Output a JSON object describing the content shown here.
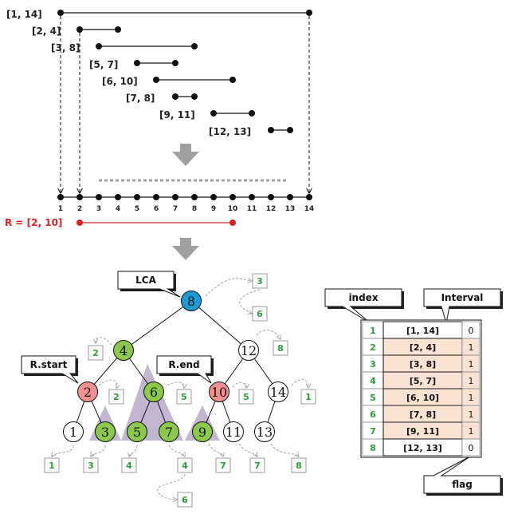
{
  "intervals": [
    {
      "label": "[1, 14]",
      "start": 1,
      "end": 14
    },
    {
      "label": "[2, 4]",
      "start": 2,
      "end": 4
    },
    {
      "label": "[3, 8]",
      "start": 3,
      "end": 8
    },
    {
      "label": "[5, 7]",
      "start": 5,
      "end": 7
    },
    {
      "label": "[6, 10]",
      "start": 6,
      "end": 10
    },
    {
      "label": "[7, 8]",
      "start": 7,
      "end": 8
    },
    {
      "label": "[9, 11]",
      "start": 9,
      "end": 11
    },
    {
      "label": "[12, 13]",
      "start": 12,
      "end": 13
    }
  ],
  "axis_ticks": [
    "1",
    "2",
    "3",
    "4",
    "5",
    "6",
    "7",
    "8",
    "9",
    "10",
    "11",
    "12",
    "13",
    "14"
  ],
  "query": {
    "label": "R = [2, 10]",
    "start": 2,
    "end": 10
  },
  "colors": {
    "interval": "#111111",
    "query": "#e02020",
    "lca": "#1e9bd7",
    "green": "#8cc84b",
    "pink": "#f09090",
    "arrow": "#a0a0a0",
    "shade": "#b8a9c9",
    "table_row": "#fbe3d3"
  },
  "tree_nodes": [
    {
      "id": "8",
      "label": "8",
      "color": "lca",
      "indices": [
        "3",
        "6"
      ]
    },
    {
      "id": "4",
      "label": "4",
      "color": "green",
      "indices": [
        "2"
      ]
    },
    {
      "id": "12",
      "label": "12",
      "color": "white",
      "indices": [
        "8"
      ]
    },
    {
      "id": "2",
      "label": "2",
      "color": "pink",
      "indices": [
        "2"
      ]
    },
    {
      "id": "6",
      "label": "6",
      "color": "green",
      "indices": [
        "5"
      ]
    },
    {
      "id": "10",
      "label": "10",
      "color": "pink",
      "indices": [
        "5"
      ]
    },
    {
      "id": "14",
      "label": "14",
      "color": "white",
      "indices": [
        "1"
      ]
    },
    {
      "id": "1",
      "label": "1",
      "color": "white",
      "indices": [
        "1"
      ]
    },
    {
      "id": "3",
      "label": "3",
      "color": "green",
      "indices": [
        "3"
      ]
    },
    {
      "id": "5",
      "label": "5",
      "color": "green",
      "indices": [
        "4"
      ]
    },
    {
      "id": "7",
      "label": "7",
      "color": "green",
      "indices": [
        "4",
        "6"
      ]
    },
    {
      "id": "9",
      "label": "9",
      "color": "green",
      "indices": [
        "7"
      ]
    },
    {
      "id": "11",
      "label": "11",
      "color": "white",
      "indices": [
        "7"
      ]
    },
    {
      "id": "13",
      "label": "13",
      "color": "white",
      "indices": [
        "8"
      ]
    }
  ],
  "callouts": {
    "lca": "LCA",
    "rstart": "R.start",
    "rend": "R.end"
  },
  "table": {
    "header_index": "index",
    "header_interval": "Interval",
    "footer_flag": "flag",
    "rows": [
      {
        "index": "1",
        "interval": "[1, 14]",
        "flag": "0"
      },
      {
        "index": "2",
        "interval": "[2, 4]",
        "flag": "1"
      },
      {
        "index": "3",
        "interval": "[3, 8]",
        "flag": "1"
      },
      {
        "index": "4",
        "interval": "[5, 7]",
        "flag": "1"
      },
      {
        "index": "5",
        "interval": "[6, 10]",
        "flag": "1"
      },
      {
        "index": "6",
        "interval": "[7, 8]",
        "flag": "1"
      },
      {
        "index": "7",
        "interval": "[9, 11]",
        "flag": "1"
      },
      {
        "index": "8",
        "interval": "[12, 13]",
        "flag": "0"
      }
    ]
  }
}
